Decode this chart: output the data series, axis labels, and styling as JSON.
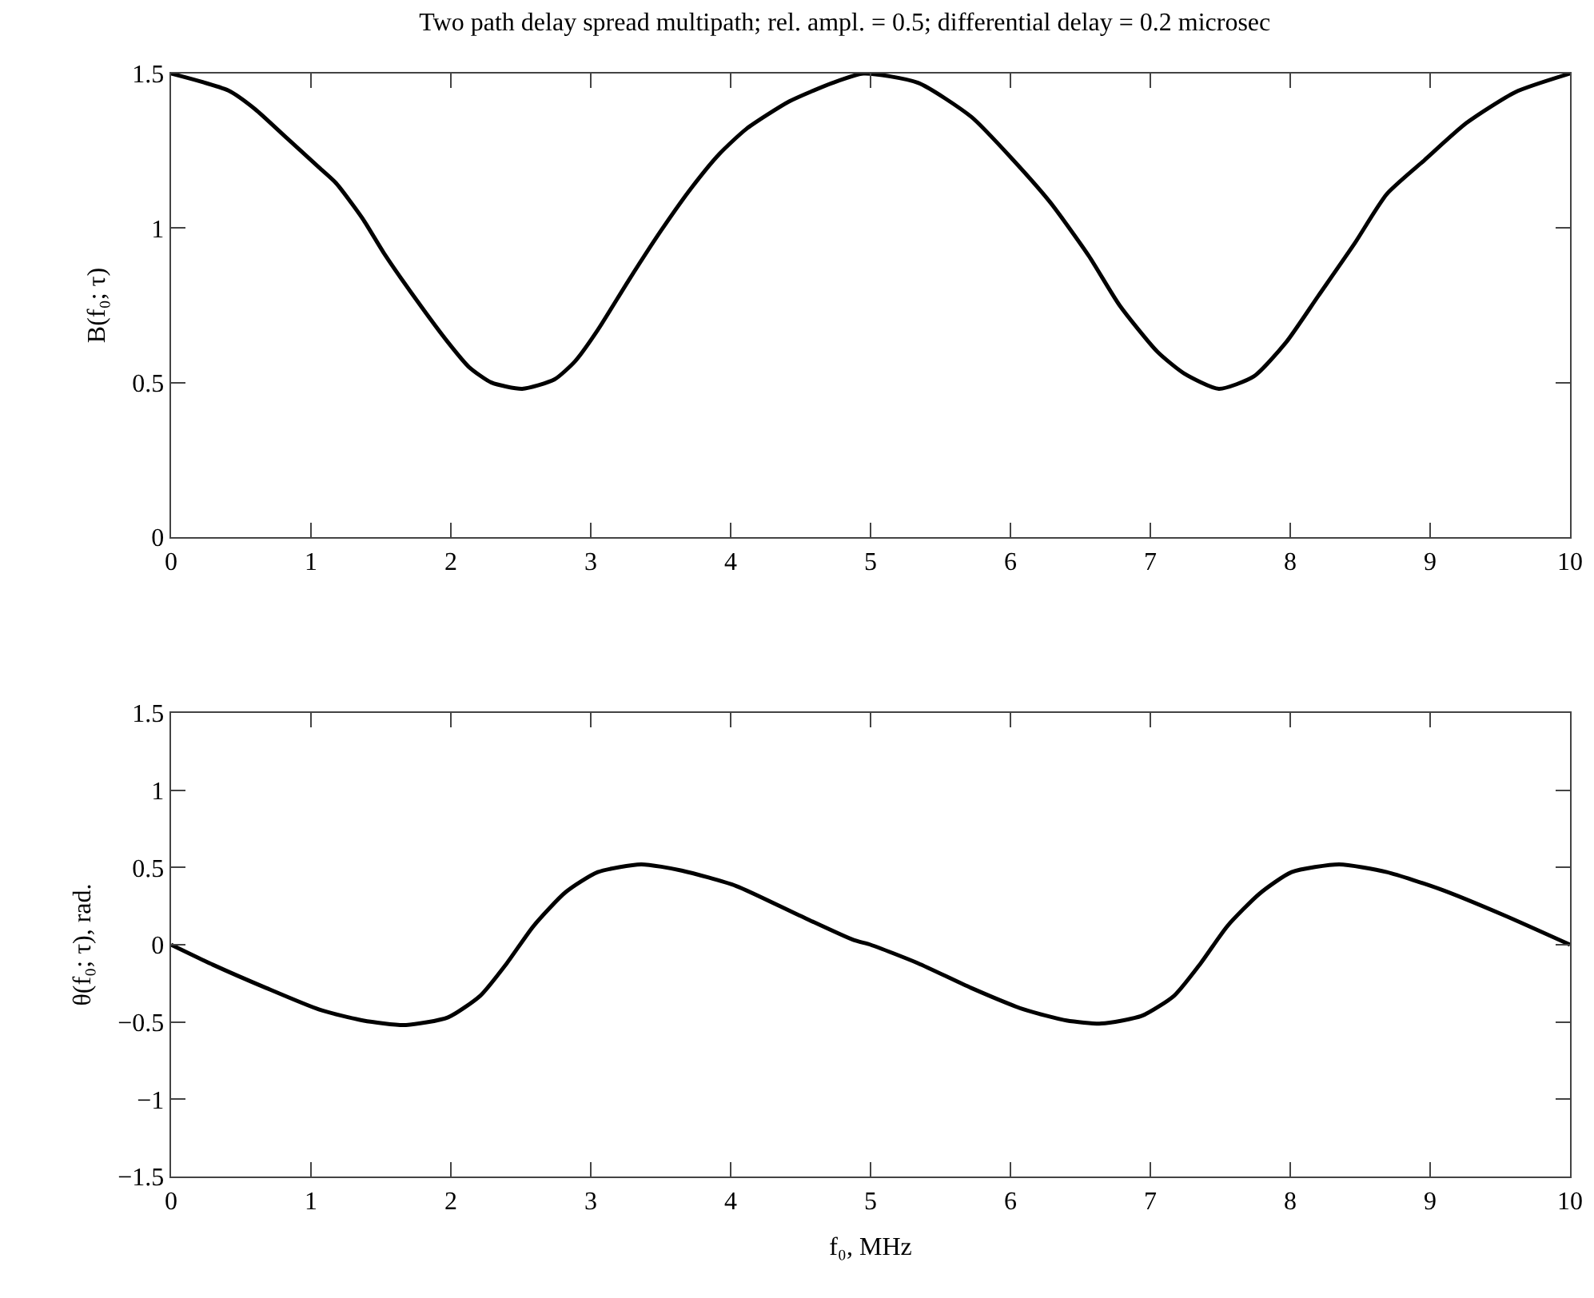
{
  "chart_data": [
    {
      "type": "line",
      "title": "Two path delay spread multipath; rel. ampl. = 0.5; differential delay = 0.2 microsec",
      "ylabel": "B(f₀; τ)",
      "x": [
        0,
        0.41,
        0.6,
        0.83,
        1.06,
        1.18,
        1.37,
        1.52,
        1.75,
        1.98,
        2.13,
        2.29,
        2.51,
        2.74,
        2.89,
        3.05,
        3.27,
        3.5,
        3.72,
        3.92,
        4.11,
        4.42,
        4.73,
        4.95,
        5.34,
        5.72,
        6.02,
        6.29,
        6.56,
        6.78,
        7.05,
        7.24,
        7.49,
        7.74,
        7.97,
        8.2,
        8.46,
        8.69,
        8.96,
        9.26,
        9.61,
        10
      ],
      "series": [
        {
          "color": "#000000",
          "values": [
            1.5,
            1.445,
            1.385,
            1.29,
            1.195,
            1.145,
            1.03,
            0.92,
            0.77,
            0.63,
            0.55,
            0.5,
            0.48,
            0.51,
            0.57,
            0.67,
            0.83,
            0.99,
            1.13,
            1.24,
            1.32,
            1.41,
            1.47,
            1.5,
            1.47,
            1.36,
            1.22,
            1.08,
            0.91,
            0.75,
            0.6,
            0.53,
            0.48,
            0.52,
            0.63,
            0.78,
            0.95,
            1.11,
            1.22,
            1.34,
            1.44,
            1.5
          ]
        }
      ],
      "xlim": [
        0,
        10
      ],
      "xticks": [
        0,
        1,
        2,
        3,
        4,
        5,
        6,
        7,
        8,
        9,
        10
      ],
      "ylim": [
        0,
        1.5
      ],
      "yticks": [
        0,
        0.5,
        1,
        1.5
      ],
      "grid": false,
      "marker": "none",
      "line_style": "solid"
    },
    {
      "type": "line",
      "xlabel": "f₀, MHz",
      "ylabel": "θ(f₀; τ), rad.",
      "x": [
        0,
        0.3,
        0.68,
        1.06,
        1.37,
        1.67,
        1.98,
        2.21,
        2.4,
        2.59,
        2.82,
        3.05,
        3.36,
        3.65,
        4.04,
        4.49,
        4.88,
        5,
        5.34,
        5.72,
        6.1,
        6.4,
        6.65,
        6.94,
        7.17,
        7.36,
        7.55,
        7.78,
        8.01,
        8.35,
        8.69,
        9.07,
        9.53,
        10
      ],
      "series": [
        {
          "color": "#000000",
          "values": [
            0,
            -0.13,
            -0.28,
            -0.42,
            -0.49,
            -0.52,
            -0.47,
            -0.33,
            -0.12,
            0.12,
            0.34,
            0.47,
            0.52,
            0.48,
            0.38,
            0.19,
            0.03,
            0,
            -0.12,
            -0.28,
            -0.42,
            -0.49,
            -0.51,
            -0.46,
            -0.33,
            -0.12,
            0.12,
            0.33,
            0.47,
            0.52,
            0.47,
            0.36,
            0.19,
            0
          ]
        }
      ],
      "xlim": [
        0,
        10
      ],
      "xticks": [
        0,
        1,
        2,
        3,
        4,
        5,
        6,
        7,
        8,
        9,
        10
      ],
      "ylim": [
        -1.5,
        1.5
      ],
      "yticks": [
        {
          "value": -1.5,
          "label": "−1.5"
        },
        {
          "value": -1,
          "label": "−1"
        },
        {
          "value": -0.5,
          "label": "−0.5"
        },
        0,
        0.5,
        1,
        1.5
      ],
      "grid": false,
      "marker": "none",
      "line_style": "solid"
    }
  ]
}
